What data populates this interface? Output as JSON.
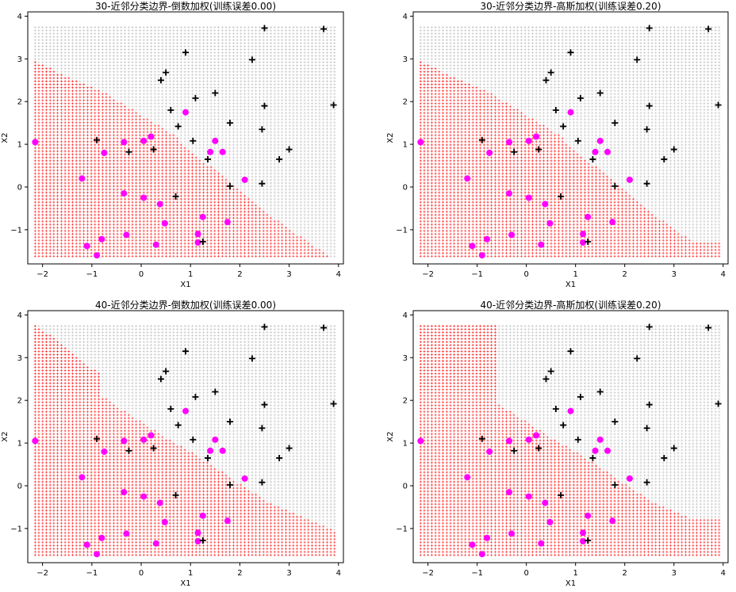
{
  "chart_data": [
    {
      "type": "scatter",
      "title": "30-近邻分类边界-倒数加权(训练误差0.00)",
      "xlabel": "X1",
      "ylabel": "X2",
      "xlim": [
        -2.3,
        4.1
      ],
      "ylim": [
        -1.8,
        4.1
      ],
      "xticks": [
        -2,
        -1,
        0,
        1,
        2,
        3,
        4
      ],
      "yticks": [
        -1,
        0,
        1,
        2,
        3,
        4
      ],
      "k": 30,
      "weighting": "inverse-distance",
      "region_colors": {
        "class_0": "#ff2a2a",
        "class_1": "#c8c8c8"
      }
    },
    {
      "type": "scatter",
      "title": "30-近邻分类边界-高斯加权(训练误差0.20)",
      "xlabel": "X1",
      "ylabel": "X2",
      "xlim": [
        -2.3,
        4.1
      ],
      "ylim": [
        -1.8,
        4.1
      ],
      "xticks": [
        -2,
        -1,
        0,
        1,
        2,
        3,
        4
      ],
      "yticks": [
        -1,
        0,
        1,
        2,
        3,
        4
      ],
      "k": 30,
      "weighting": "gaussian",
      "region_colors": {
        "class_0": "#ff2a2a",
        "class_1": "#c8c8c8"
      }
    },
    {
      "type": "scatter",
      "title": "40-近邻分类边界-倒数加权(训练误差0.00)",
      "xlabel": "X1",
      "ylabel": "X2",
      "xlim": [
        -2.3,
        4.1
      ],
      "ylim": [
        -1.8,
        4.1
      ],
      "xticks": [
        -2,
        -1,
        0,
        1,
        2,
        3,
        4
      ],
      "yticks": [
        -1,
        0,
        1,
        2,
        3,
        4
      ],
      "k": 40,
      "weighting": "inverse-distance",
      "region_colors": {
        "class_0": "#ff2a2a",
        "class_1": "#c8c8c8"
      }
    },
    {
      "type": "scatter",
      "title": "40-近邻分类边界-高斯加权(训练误差0.20)",
      "xlabel": "X1",
      "ylabel": "X2",
      "xlim": [
        -2.3,
        4.1
      ],
      "ylim": [
        -1.8,
        4.1
      ],
      "xticks": [
        -2,
        -1,
        0,
        1,
        2,
        3,
        4
      ],
      "yticks": [
        -1,
        0,
        1,
        2,
        3,
        4
      ],
      "k": 40,
      "weighting": "gaussian",
      "region_colors": {
        "class_0": "#ff2a2a",
        "class_1": "#c8c8c8"
      }
    }
  ],
  "training_points": {
    "class_0": {
      "marker": "circle",
      "color": "#ff00ff",
      "points": [
        [
          -2.15,
          1.05
        ],
        [
          -1.2,
          0.2
        ],
        [
          -1.1,
          -1.38
        ],
        [
          -0.9,
          -1.6
        ],
        [
          -0.8,
          -1.22
        ],
        [
          -0.75,
          0.8
        ],
        [
          -0.35,
          1.05
        ],
        [
          -0.35,
          -0.15
        ],
        [
          -0.3,
          -1.12
        ],
        [
          0.05,
          1.08
        ],
        [
          0.05,
          -0.25
        ],
        [
          0.2,
          1.18
        ],
        [
          0.3,
          -1.35
        ],
        [
          0.38,
          -0.4
        ],
        [
          0.48,
          -0.85
        ],
        [
          0.9,
          1.75
        ],
        [
          1.15,
          -1.1
        ],
        [
          1.15,
          -1.3
        ],
        [
          1.25,
          -0.7
        ],
        [
          1.4,
          0.82
        ],
        [
          1.5,
          1.08
        ],
        [
          1.65,
          0.82
        ],
        [
          1.75,
          -0.82
        ],
        [
          2.1,
          0.17
        ]
      ]
    },
    "class_1": {
      "marker": "plus",
      "color": "#000000",
      "points": [
        [
          -0.9,
          1.1
        ],
        [
          -0.25,
          0.82
        ],
        [
          0.25,
          0.88
        ],
        [
          0.4,
          2.5
        ],
        [
          0.5,
          2.68
        ],
        [
          0.6,
          1.8
        ],
        [
          0.75,
          1.42
        ],
        [
          0.7,
          -0.22
        ],
        [
          0.9,
          3.15
        ],
        [
          1.05,
          1.08
        ],
        [
          1.1,
          2.08
        ],
        [
          1.25,
          -1.28
        ],
        [
          1.35,
          0.65
        ],
        [
          1.5,
          2.2
        ],
        [
          1.8,
          1.5
        ],
        [
          1.8,
          0.02
        ],
        [
          2.25,
          2.98
        ],
        [
          2.45,
          1.35
        ],
        [
          2.45,
          0.08
        ],
        [
          2.5,
          3.72
        ],
        [
          2.5,
          1.9
        ],
        [
          2.8,
          0.65
        ],
        [
          3.0,
          0.88
        ],
        [
          3.7,
          3.7
        ],
        [
          3.9,
          1.92
        ]
      ]
    }
  }
}
